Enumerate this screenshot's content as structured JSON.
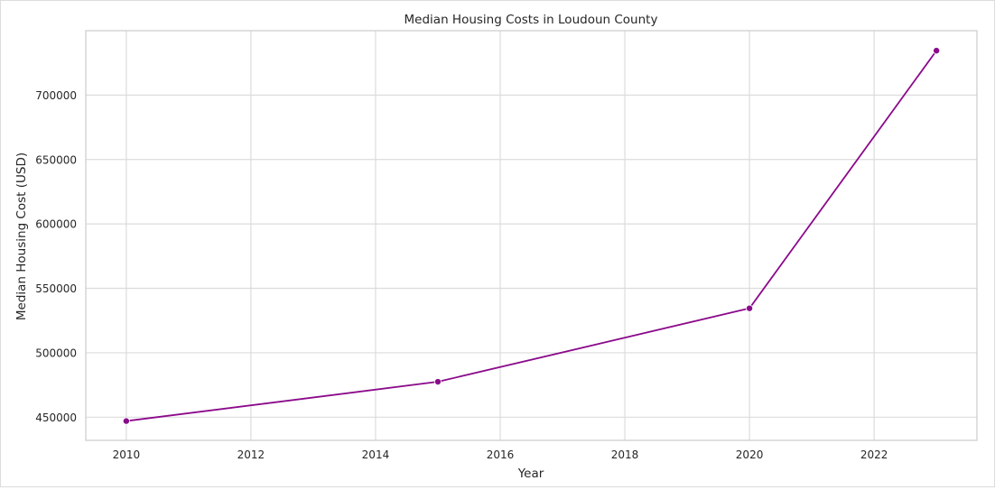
{
  "chart_data": {
    "type": "line",
    "title": "Median Housing Costs in Loudoun County",
    "xlabel": "Year",
    "ylabel": "Median Housing Cost (USD)",
    "x": [
      2010,
      2015,
      2020,
      2023
    ],
    "series": [
      {
        "values": [
          447000,
          477500,
          534500,
          734500
        ]
      }
    ],
    "xlim": [
      2009.35,
      2023.65
    ],
    "ylim": [
      432000,
      750000
    ],
    "xticks": [
      2010,
      2012,
      2014,
      2016,
      2018,
      2020,
      2022
    ],
    "yticks": [
      450000,
      500000,
      550000,
      600000,
      650000,
      700000
    ],
    "grid": true,
    "colors": {
      "line": "#8b0a8b",
      "grid": "#dcdcdc",
      "axes_edge": "#cccccc"
    }
  }
}
